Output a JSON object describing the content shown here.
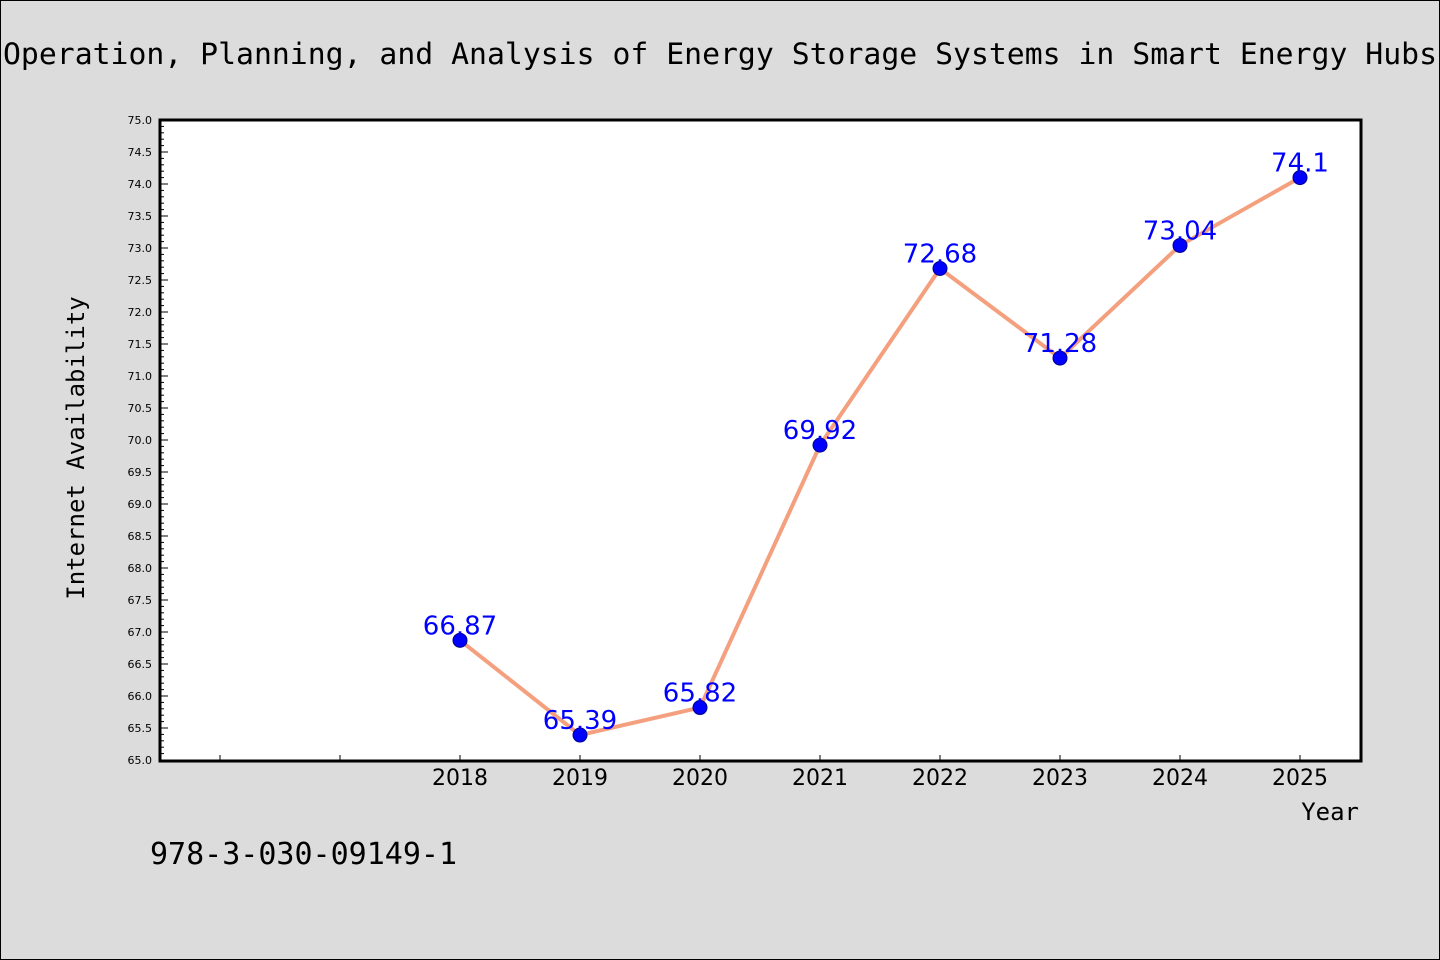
{
  "chart_data": {
    "type": "line",
    "title": "Operation, Planning, and Analysis of Energy Storage Systems in Smart Energy Hubs",
    "xlabel": "Year",
    "ylabel": "Internet Availability",
    "categories": [
      "",
      "",
      "2018",
      "2019",
      "2020",
      "2021",
      "2022",
      "2023",
      "2024",
      "2025"
    ],
    "series": [
      {
        "values": [
          null,
          null,
          66.87,
          65.39,
          65.82,
          69.92,
          72.68,
          71.28,
          73.04,
          74.1
        ],
        "labels": [
          "",
          "",
          "66.87",
          "65.39",
          "65.82",
          "69.92",
          "72.68",
          "71.28",
          "73.04",
          "74.1"
        ]
      }
    ],
    "ylim": [
      65.0,
      75.0
    ],
    "yticks": [
      "65.0",
      "65.5",
      "66.0",
      "66.5",
      "67.0",
      "67.5",
      "68.0",
      "68.5",
      "69.0",
      "69.5",
      "70.0",
      "70.5",
      "71.0",
      "71.5",
      "72.0",
      "72.5",
      "73.0",
      "73.5",
      "74.0",
      "74.5",
      "75.0"
    ],
    "grid": false,
    "line_color": "#f4a07e",
    "marker_color": "#0000ff",
    "label_color": "#0000ff"
  },
  "footer": {
    "isbn": "978-3-030-09149-1"
  }
}
